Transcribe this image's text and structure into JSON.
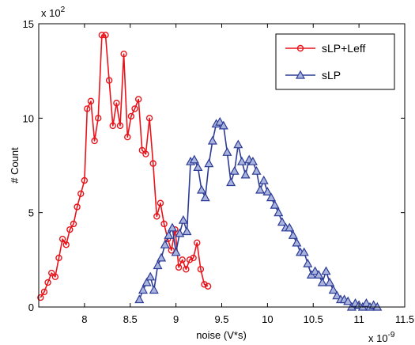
{
  "chart_data": {
    "type": "line",
    "xlabel": "noise (V*s)",
    "ylabel": "# Count",
    "x_scale_label": "x 10",
    "x_scale_exp": "-9",
    "y_scale_label": "x 10",
    "y_scale_exp": "2",
    "xlim": [
      7.5,
      11.5
    ],
    "ylim": [
      0,
      15
    ],
    "xticks": [
      8,
      8.5,
      9,
      9.5,
      10,
      10.5,
      11,
      11.5
    ],
    "xtick_labels": [
      "8",
      "8.5",
      "9",
      "9.5",
      "10",
      "10.5",
      "11",
      "11.5"
    ],
    "yticks": [
      0,
      5,
      10,
      15
    ],
    "ytick_labels": [
      "0",
      "5",
      "10",
      "15"
    ],
    "legend_position": "top-right",
    "series": [
      {
        "name": "sLP+Leff",
        "color": "#e8141b",
        "marker": "circle",
        "x": [
          7.52,
          7.56,
          7.6,
          7.64,
          7.68,
          7.72,
          7.76,
          7.8,
          7.84,
          7.88,
          7.92,
          7.96,
          8.0,
          8.03,
          8.07,
          8.11,
          8.15,
          8.19,
          8.23,
          8.27,
          8.31,
          8.35,
          8.39,
          8.43,
          8.47,
          8.51,
          8.55,
          8.59,
          8.63,
          8.67,
          8.71,
          8.75,
          8.79,
          8.83,
          8.87,
          8.91,
          8.95,
          8.99,
          9.03,
          9.07,
          9.11,
          9.15,
          9.19,
          9.23,
          9.27,
          9.31,
          9.35
        ],
        "values": [
          0.5,
          0.8,
          1.3,
          1.8,
          1.6,
          2.6,
          3.6,
          3.3,
          4.1,
          4.4,
          5.3,
          6.0,
          6.7,
          10.5,
          10.9,
          8.8,
          10.0,
          14.4,
          14.4,
          12.0,
          9.6,
          10.8,
          9.6,
          13.4,
          9.0,
          10.1,
          10.5,
          11.0,
          8.3,
          8.1,
          10.0,
          7.6,
          4.8,
          5.5,
          4.4,
          3.6,
          3.0,
          4.1,
          2.1,
          2.5,
          2.0,
          2.5,
          2.6,
          3.4,
          2.0,
          1.2,
          1.1
        ]
      },
      {
        "name": "sLP",
        "color": "#2b3b96",
        "marker": "triangle",
        "x": [
          8.6,
          8.64,
          8.68,
          8.72,
          8.76,
          8.8,
          8.84,
          8.88,
          8.92,
          8.96,
          9.0,
          9.04,
          9.08,
          9.12,
          9.16,
          9.2,
          9.24,
          9.28,
          9.32,
          9.36,
          9.4,
          9.44,
          9.48,
          9.52,
          9.56,
          9.6,
          9.64,
          9.68,
          9.72,
          9.76,
          9.8,
          9.84,
          9.88,
          9.92,
          9.96,
          10.0,
          10.04,
          10.08,
          10.12,
          10.16,
          10.2,
          10.24,
          10.28,
          10.32,
          10.36,
          10.4,
          10.44,
          10.48,
          10.52,
          10.56,
          10.6,
          10.64,
          10.68,
          10.72,
          10.76,
          10.8,
          10.84,
          10.88,
          10.92,
          10.96,
          11.0,
          11.04,
          11.08,
          11.12,
          11.16,
          11.2
        ],
        "values": [
          0.4,
          0.9,
          1.3,
          1.6,
          0.9,
          2.2,
          2.6,
          3.3,
          3.8,
          4.2,
          2.9,
          3.9,
          4.6,
          4.0,
          7.7,
          7.8,
          7.4,
          6.2,
          5.8,
          7.6,
          8.8,
          9.7,
          9.8,
          9.6,
          8.2,
          6.6,
          7.2,
          8.6,
          7.7,
          7.0,
          7.8,
          7.7,
          7.2,
          6.2,
          6.7,
          6.1,
          5.8,
          5.4,
          5.0,
          4.5,
          4.2,
          4.2,
          3.8,
          3.4,
          2.9,
          2.9,
          2.3,
          1.7,
          1.9,
          1.7,
          1.3,
          1.9,
          1.3,
          0.9,
          0.6,
          0.4,
          0.4,
          0.3,
          0.0,
          0.2,
          0.1,
          0.0,
          0.2,
          0.0,
          0.1,
          0.0
        ]
      }
    ]
  }
}
